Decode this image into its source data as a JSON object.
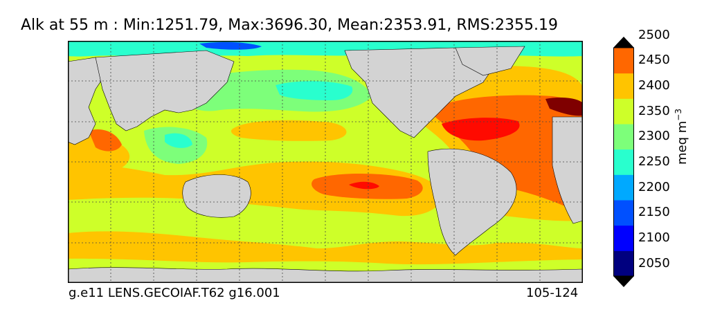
{
  "title": "Alk at 55 m : Min:1251.79, Max:3696.30, Mean:2353.91, RMS:2355.19",
  "footer": {
    "left": "g.e11 LENS.GECOIAF.T62 g16.001",
    "right": "105-124"
  },
  "colorbar": {
    "unit_main": "meq m",
    "unit_exp": "−3",
    "ticks": [
      "2050",
      "2100",
      "2150",
      "2200",
      "2250",
      "2300",
      "2350",
      "2400",
      "2450",
      "2500"
    ],
    "colors": [
      "#00007f",
      "#0000ff",
      "#0050ff",
      "#00a9ff",
      "#29ffce",
      "#7dff7a",
      "#ceff29",
      "#ffc400",
      "#ff6700",
      "#ff0a00",
      "#7f0000"
    ],
    "extend": "both"
  },
  "map": {
    "projection": "global equirectangular, Pacific-centred (longitude 20E to 380E)",
    "field": "Alkalinity at 55 m depth",
    "land_color": "#d3d3d3",
    "gridlines": "dotted, every 30 degrees"
  }
}
